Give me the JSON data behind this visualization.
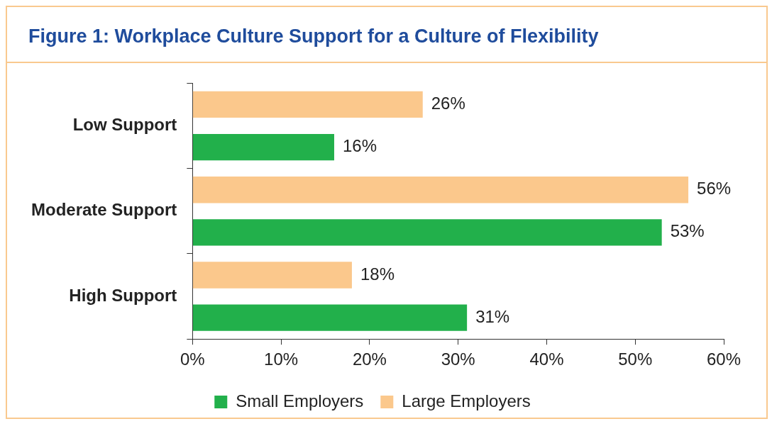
{
  "chart_data": {
    "type": "bar",
    "orientation": "horizontal",
    "title": "Figure 1: Workplace Culture Support for a Culture of Flexibility",
    "categories": [
      "Low Support",
      "Moderate Support",
      "High Support"
    ],
    "series": [
      {
        "name": "Small Employers",
        "color": "#22b04b",
        "values": [
          16,
          53,
          31
        ],
        "value_labels": [
          "16%",
          "53%",
          "31%"
        ]
      },
      {
        "name": "Large Employers",
        "color": "#fbc88c",
        "values": [
          26,
          56,
          18
        ],
        "value_labels": [
          "26%",
          "56%",
          "18%"
        ]
      }
    ],
    "xlim": [
      0,
      60
    ],
    "xticks": [
      {
        "value": 0,
        "label": "0%"
      },
      {
        "value": 10,
        "label": "10%"
      },
      {
        "value": 20,
        "label": "20%"
      },
      {
        "value": 30,
        "label": "30%"
      },
      {
        "value": 40,
        "label": "40%"
      },
      {
        "value": 50,
        "label": "50%"
      },
      {
        "value": 60,
        "label": "60%"
      }
    ],
    "grid": false,
    "legend": "bottom"
  }
}
